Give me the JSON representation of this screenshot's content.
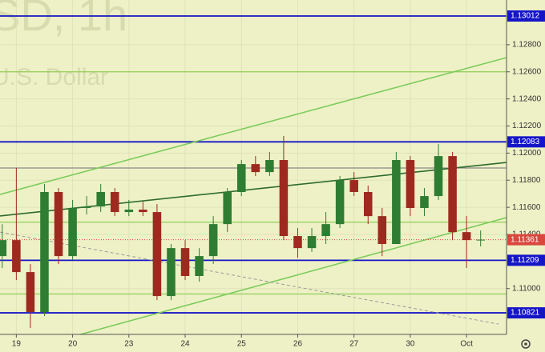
{
  "chart_data": {
    "type": "candlestick",
    "watermark_title": "SD, 1h",
    "watermark_subtitle": "U.S. Dollar",
    "background": "#eef1c6",
    "up_color": "#2e7d32",
    "down_color": "#9e2a1f",
    "x": [
      -0.25,
      0,
      0.25,
      0.5,
      0.75,
      1,
      1.25,
      1.5,
      1.75,
      2,
      2.25,
      2.5,
      2.75,
      3,
      3.25,
      3.5,
      3.75,
      4,
      4.25,
      4.5,
      4.75,
      5,
      5.25,
      5.5,
      5.75,
      6,
      6.25,
      6.5,
      6.75,
      7,
      7.25,
      7.5,
      7.75,
      8,
      8.25
    ],
    "open": [
      1.1124,
      1.11358,
      1.11122,
      1.10827,
      1.11713,
      1.1124,
      1.11595,
      1.11606,
      1.11713,
      1.11565,
      1.11583,
      1.11565,
      1.10945,
      1.11299,
      1.11093,
      1.1124,
      1.11476,
      1.11713,
      1.11919,
      1.1186,
      1.11949,
      1.11388,
      1.11299,
      1.11388,
      1.11476,
      1.11801,
      1.11713,
      1.11535,
      1.11329,
      1.11949,
      1.11595,
      1.11683,
      1.11978,
      1.11417,
      1.11358
    ],
    "high": [
      1.11476,
      1.1189,
      1.11181,
      1.11772,
      1.11742,
      1.11654,
      1.11683,
      1.11772,
      1.11742,
      1.11654,
      1.11642,
      1.11624,
      1.11329,
      1.11358,
      1.11299,
      1.11535,
      1.11742,
      1.11949,
      1.11978,
      1.12008,
      1.12126,
      1.11447,
      1.11447,
      1.11565,
      1.11831,
      1.1186,
      1.1176,
      1.11595,
      1.12008,
      1.11978,
      1.11742,
      1.12067,
      1.12008,
      1.11535,
      1.11429
    ],
    "low": [
      1.11152,
      1.11063,
      1.10709,
      1.10797,
      1.11181,
      1.11211,
      1.11547,
      1.11565,
      1.11535,
      1.11535,
      1.11535,
      1.10915,
      1.10915,
      1.11063,
      1.11051,
      1.11181,
      1.11417,
      1.11683,
      1.11831,
      1.11831,
      1.11358,
      1.11228,
      1.1127,
      1.11329,
      1.11447,
      1.11683,
      1.11476,
      1.1124,
      1.11329,
      1.11535,
      1.11535,
      1.11654,
      1.11358,
      1.11152,
      1.11311
    ],
    "close": [
      1.11358,
      1.11122,
      1.10827,
      1.11713,
      1.1124,
      1.11595,
      1.11606,
      1.11713,
      1.11565,
      1.11583,
      1.11565,
      1.10945,
      1.11299,
      1.11093,
      1.1124,
      1.11476,
      1.11713,
      1.11919,
      1.1186,
      1.11949,
      1.11388,
      1.11299,
      1.11388,
      1.11476,
      1.11801,
      1.11713,
      1.11535,
      1.11329,
      1.11949,
      1.11595,
      1.11683,
      1.11978,
      1.11417,
      1.11358,
      1.11361
    ],
    "xlim": [
      -0.29,
      8.71
    ],
    "ylim": [
      1.10662,
      1.1313
    ],
    "xticks": [
      {
        "value": 0,
        "label": "19"
      },
      {
        "value": 1,
        "label": "20"
      },
      {
        "value": 2,
        "label": "23"
      },
      {
        "value": 3,
        "label": "24"
      },
      {
        "value": 4,
        "label": "25"
      },
      {
        "value": 5,
        "label": "26"
      },
      {
        "value": 6,
        "label": "27"
      },
      {
        "value": 7,
        "label": "30"
      },
      {
        "value": 8,
        "label": "Oct"
      }
    ],
    "yticks": [
      {
        "value": 1.128,
        "label": "1.12800"
      },
      {
        "value": 1.126,
        "label": "1.12600"
      },
      {
        "value": 1.124,
        "label": "1.12400"
      },
      {
        "value": 1.122,
        "label": "1.12200"
      },
      {
        "value": 1.12,
        "label": "1.12000"
      },
      {
        "value": 1.118,
        "label": "1.11800"
      },
      {
        "value": 1.116,
        "label": "1.11600"
      },
      {
        "value": 1.114,
        "label": "1.11400"
      },
      {
        "value": 1.11,
        "label": "1.11000"
      }
    ],
    "grid": true,
    "levels": [
      {
        "value": 1.13012,
        "color": "#1515c8",
        "tag": true
      },
      {
        "value": 1.12083,
        "color": "#1515c8",
        "tag": true
      },
      {
        "value": 1.11209,
        "color": "#1515c8",
        "tag": true
      },
      {
        "value": 1.10821,
        "color": "#1515c8",
        "tag": true
      },
      {
        "value": 1.126,
        "color": "#8fcf5a",
        "tag": false
      },
      {
        "value": 1.1149,
        "color": "#8fcf5a",
        "tag": false
      },
      {
        "value": 1.1096,
        "color": "#8fcf5a",
        "tag": false
      },
      {
        "value": 1.1189,
        "color": "#8a8a8a",
        "tag": false
      }
    ],
    "current_price": {
      "value": 1.11361,
      "color": "#d9473d"
    },
    "trend_lines": [
      {
        "x": [
          -0.29,
          8.71
        ],
        "y": [
          1.11695,
          1.12705
        ],
        "color": "#7ccb5c",
        "dashed": false
      },
      {
        "x": [
          -0.29,
          8.71
        ],
        "y": [
          1.11536,
          1.11931
        ],
        "color": "#2f6b2f",
        "dashed": false
      },
      {
        "x": [
          1.14,
          8.71
        ],
        "y": [
          1.10662,
          1.11524
        ],
        "color": "#7ccb5c",
        "dashed": false
      },
      {
        "x": [
          -0.29,
          8.57
        ],
        "y": [
          1.11417,
          1.10738
        ],
        "color": "#9a9a9a",
        "dashed": true
      }
    ]
  }
}
